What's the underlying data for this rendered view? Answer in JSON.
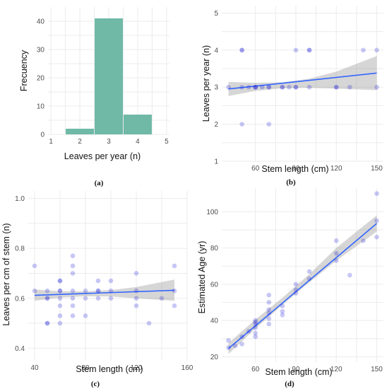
{
  "chart_data": [
    {
      "panel_label": "(a)",
      "type": "bar",
      "xlabel": "Leaves per year (n)",
      "ylabel": "Frecuency",
      "x_ticks": [
        "1",
        "2",
        "3",
        "4",
        "5"
      ],
      "y_ticks": [
        "0",
        "10",
        "20",
        "30",
        "40"
      ],
      "xlim": [
        0.9,
        5.1
      ],
      "ylim": [
        0,
        45
      ],
      "bins": [
        {
          "from": 1.5,
          "to": 2.5,
          "count": 2
        },
        {
          "from": 2.5,
          "to": 3.5,
          "count": 41
        },
        {
          "from": 3.5,
          "to": 4.5,
          "count": 7
        }
      ],
      "bar_color": "#6fb9a6",
      "grid": true
    },
    {
      "panel_label": "(b)",
      "type": "scatter",
      "xlabel": "Stem length (cm)",
      "ylabel": "Leaves per year (n)",
      "x_ticks": [
        "60",
        "90",
        "120",
        "150"
      ],
      "y_ticks": [
        "1",
        "2",
        "3",
        "4",
        "5"
      ],
      "xlim": [
        35,
        155
      ],
      "ylim": [
        1,
        5.2
      ],
      "points": [
        [
          40,
          3
        ],
        [
          50,
          4
        ],
        [
          50,
          4
        ],
        [
          50,
          2
        ],
        [
          50,
          3
        ],
        [
          55,
          3
        ],
        [
          60,
          3
        ],
        [
          60,
          3
        ],
        [
          60,
          3
        ],
        [
          65,
          3
        ],
        [
          70,
          2
        ],
        [
          70,
          3
        ],
        [
          70,
          3
        ],
        [
          80,
          3
        ],
        [
          80,
          3
        ],
        [
          85,
          3
        ],
        [
          90,
          4
        ],
        [
          90,
          3
        ],
        [
          90,
          3
        ],
        [
          100,
          4
        ],
        [
          100,
          4
        ],
        [
          100,
          3
        ],
        [
          120,
          3
        ],
        [
          120,
          3
        ],
        [
          130,
          3
        ],
        [
          140,
          4
        ],
        [
          150,
          4
        ],
        [
          150,
          3
        ]
      ],
      "fit": {
        "x": [
          40,
          150
        ],
        "y": [
          2.95,
          3.38
        ]
      },
      "band": {
        "x": [
          40,
          60,
          80,
          100,
          120,
          150
        ],
        "lower": [
          2.76,
          2.9,
          2.97,
          2.98,
          2.96,
          2.92
        ],
        "upper": [
          3.14,
          3.12,
          3.13,
          3.23,
          3.42,
          3.84
        ]
      },
      "point_color": "#2121d9",
      "line_color": "#3366ff",
      "grid": true
    },
    {
      "panel_label": "(c)",
      "type": "scatter",
      "xlabel": "Stem length (cm)",
      "ylabel": "Leaves per cm of stem (n)",
      "x_ticks": [
        "40",
        "80",
        "120",
        "160"
      ],
      "y_ticks": [
        "0.4",
        "0.6",
        "0.8",
        "1.0"
      ],
      "xlim": [
        35,
        160
      ],
      "ylim": [
        0.35,
        1.03
      ],
      "points": [
        [
          40,
          0.73
        ],
        [
          40,
          0.63
        ],
        [
          50,
          0.63
        ],
        [
          50,
          0.6
        ],
        [
          50,
          0.5
        ],
        [
          50,
          0.5
        ],
        [
          50,
          0.6
        ],
        [
          60,
          0.63
        ],
        [
          60,
          0.67
        ],
        [
          60,
          0.67
        ],
        [
          60,
          0.6
        ],
        [
          60,
          0.57
        ],
        [
          60,
          0.53
        ],
        [
          60,
          0.5
        ],
        [
          60,
          0.63
        ],
        [
          70,
          0.77
        ],
        [
          70,
          0.73
        ],
        [
          70,
          0.7
        ],
        [
          70,
          0.63
        ],
        [
          70,
          0.6
        ],
        [
          70,
          0.57
        ],
        [
          70,
          0.53
        ],
        [
          80,
          0.6
        ],
        [
          80,
          0.63
        ],
        [
          80,
          0.53
        ],
        [
          90,
          0.67
        ],
        [
          90,
          0.63
        ],
        [
          90,
          0.63
        ],
        [
          90,
          0.6
        ],
        [
          100,
          0.67
        ],
        [
          100,
          0.63
        ],
        [
          100,
          0.6
        ],
        [
          120,
          0.7
        ],
        [
          120,
          0.63
        ],
        [
          120,
          0.6
        ],
        [
          120,
          0.57
        ],
        [
          130,
          0.5
        ],
        [
          140,
          0.6
        ],
        [
          150,
          0.73
        ],
        [
          150,
          0.63
        ],
        [
          150,
          0.57
        ]
      ],
      "fit": {
        "x": [
          40,
          150
        ],
        "y": [
          0.612,
          0.632
        ]
      },
      "band": {
        "x": [
          40,
          60,
          80,
          100,
          120,
          150
        ],
        "lower": [
          0.59,
          0.603,
          0.608,
          0.607,
          0.6,
          0.59
        ],
        "upper": [
          0.635,
          0.628,
          0.628,
          0.633,
          0.645,
          0.675
        ]
      },
      "point_color": "#2121d9",
      "line_color": "#3366ff",
      "grid": true
    },
    {
      "panel_label": "(d)",
      "type": "scatter",
      "xlabel": "Stem length (cm)",
      "ylabel": "Estimated Age (yr)",
      "x_ticks": [
        "60",
        "90",
        "120",
        "150"
      ],
      "y_ticks": [
        "20",
        "40",
        "60",
        "80",
        "100"
      ],
      "xlim": [
        35,
        155
      ],
      "ylim": [
        17,
        113
      ],
      "points": [
        [
          40,
          29
        ],
        [
          40,
          25
        ],
        [
          45,
          26
        ],
        [
          50,
          31
        ],
        [
          50,
          27
        ],
        [
          55,
          34
        ],
        [
          60,
          39
        ],
        [
          60,
          40
        ],
        [
          60,
          38
        ],
        [
          60,
          36
        ],
        [
          60,
          33
        ],
        [
          60,
          31
        ],
        [
          70,
          54
        ],
        [
          70,
          50
        ],
        [
          70,
          46
        ],
        [
          70,
          44
        ],
        [
          70,
          41
        ],
        [
          70,
          38
        ],
        [
          80,
          48
        ],
        [
          80,
          45
        ],
        [
          80,
          43
        ],
        [
          90,
          60
        ],
        [
          90,
          57
        ],
        [
          90,
          55
        ],
        [
          100,
          67
        ],
        [
          100,
          63
        ],
        [
          120,
          84
        ],
        [
          120,
          77
        ],
        [
          120,
          73
        ],
        [
          130,
          65
        ],
        [
          140,
          84
        ],
        [
          150,
          110
        ],
        [
          150,
          95
        ],
        [
          150,
          86
        ]
      ],
      "fit": {
        "x": [
          40,
          150
        ],
        "y": [
          24.5,
          93.5
        ]
      },
      "band": {
        "x": [
          40,
          60,
          80,
          100,
          120,
          150
        ],
        "lower": [
          21.5,
          35.5,
          48.5,
          61,
          73,
          89
        ],
        "upper": [
          27.5,
          40.5,
          52.5,
          65.5,
          80,
          98
        ]
      },
      "point_color": "#2121d9",
      "line_color": "#3366ff",
      "grid": true
    }
  ]
}
